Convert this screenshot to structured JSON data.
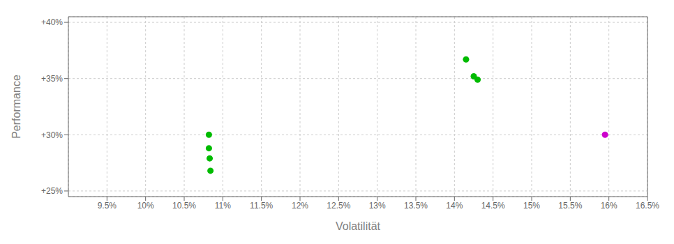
{
  "chart_data": {
    "type": "scatter",
    "xlabel": "Volatilität",
    "ylabel": "Performance",
    "xlim": [
      0.09,
      0.165
    ],
    "ylim": [
      0.245,
      0.405
    ],
    "xticks": [
      {
        "value": 0.095,
        "label": "9.5%"
      },
      {
        "value": 0.1,
        "label": "10%"
      },
      {
        "value": 0.105,
        "label": "10.5%"
      },
      {
        "value": 0.11,
        "label": "11%"
      },
      {
        "value": 0.115,
        "label": "11.5%"
      },
      {
        "value": 0.12,
        "label": "12%"
      },
      {
        "value": 0.125,
        "label": "12.5%"
      },
      {
        "value": 0.13,
        "label": "13%"
      },
      {
        "value": 0.135,
        "label": "13.5%"
      },
      {
        "value": 0.14,
        "label": "14%"
      },
      {
        "value": 0.145,
        "label": "14.5%"
      },
      {
        "value": 0.15,
        "label": "15%"
      },
      {
        "value": 0.155,
        "label": "15.5%"
      },
      {
        "value": 0.16,
        "label": "16%"
      },
      {
        "value": 0.165,
        "label": "16.5%"
      }
    ],
    "yticks": [
      {
        "value": 0.25,
        "label": "+25%"
      },
      {
        "value": 0.3,
        "label": "+30%"
      },
      {
        "value": 0.35,
        "label": "+35%"
      },
      {
        "value": 0.4,
        "label": "+40%"
      }
    ],
    "grid": true,
    "series": [
      {
        "color": "#00bb00",
        "x": [
          0.1082,
          0.1082,
          0.1083,
          0.1084,
          0.1415,
          0.1425,
          0.143
        ],
        "values": [
          0.3,
          0.288,
          0.279,
          0.268,
          0.367,
          0.352,
          0.349
        ]
      },
      {
        "color": "#cc00cc",
        "x": [
          0.1595
        ],
        "values": [
          0.3
        ]
      }
    ]
  }
}
